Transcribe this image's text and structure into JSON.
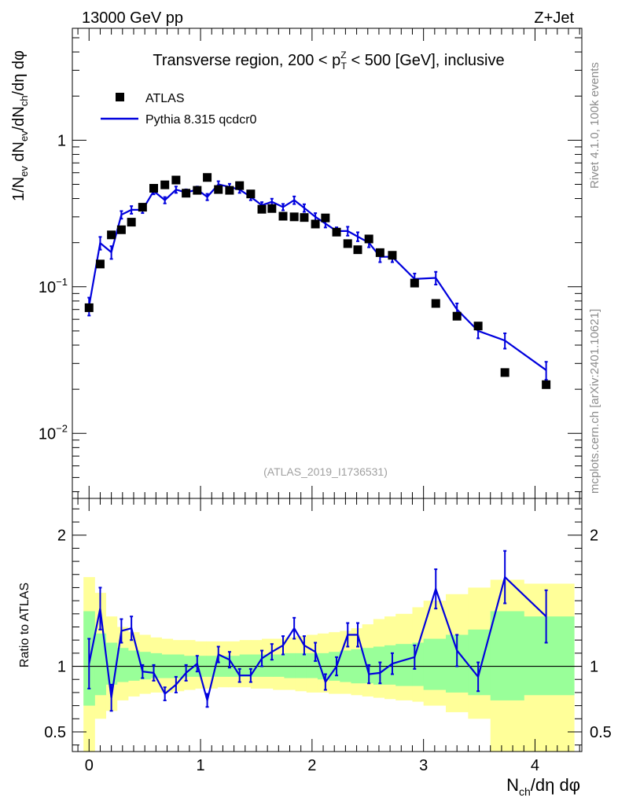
{
  "header": {
    "left": "13000 GeV pp",
    "right": "Z+Jet"
  },
  "side_labels": {
    "rivet": "Rivet 4.1.0,  100k events",
    "source": "mcplots.cern.ch [arXiv:2401.10621]"
  },
  "chart_data": [
    {
      "type": "scatter",
      "role": "main",
      "title": "Transverse region, 200 < p_T^Z < 500 [GeV], inclusive",
      "title_parts": {
        "a": "Transverse region, 200 < p",
        "sup": "Z",
        "sub": "T",
        "b": " < 500 [GeV], inclusive"
      },
      "ylabel": "1/N_ev dN_ev/dN_ch/dη dφ",
      "ylabel_parts": [
        "1/N",
        "ev",
        " dN",
        "ev",
        "/dN",
        "ch",
        "/dη dφ"
      ],
      "yscale": "log",
      "xlim": [
        -0.15,
        4.42
      ],
      "ylim": [
        0.0036,
        5.8
      ],
      "y_ticks": [
        {
          "value": 1,
          "label": "1"
        },
        {
          "value": 0.1,
          "label": "10",
          "exp": "−1"
        },
        {
          "value": 0.01,
          "label": "10",
          "exp": "−2"
        }
      ],
      "watermark": "(ATLAS_2019_I1736531)",
      "legend": [
        "ATLAS",
        "Pythia 8.315 qcdcr0"
      ],
      "series": [
        {
          "name": "ATLAS",
          "style": "black-squares",
          "x": [
            0.0,
            0.1,
            0.2,
            0.29,
            0.38,
            0.48,
            0.58,
            0.68,
            0.78,
            0.87,
            0.97,
            1.06,
            1.16,
            1.26,
            1.35,
            1.45,
            1.55,
            1.64,
            1.74,
            1.84,
            1.93,
            2.03,
            2.12,
            2.22,
            2.32,
            2.41,
            2.51,
            2.61,
            2.72,
            2.92,
            3.11,
            3.3,
            3.49,
            3.73,
            4.1
          ],
          "values": [
            0.072,
            0.143,
            0.226,
            0.245,
            0.276,
            0.349,
            0.47,
            0.496,
            0.535,
            0.435,
            0.455,
            0.557,
            0.461,
            0.455,
            0.49,
            0.43,
            0.338,
            0.342,
            0.303,
            0.3,
            0.297,
            0.268,
            0.295,
            0.236,
            0.197,
            0.179,
            0.212,
            0.171,
            0.164,
            0.106,
            0.077,
            0.063,
            0.054,
            0.026,
            0.0215
          ]
        },
        {
          "name": "Pythia 8.315 qcdcr0",
          "style": "blue-line",
          "x": [
            0.0,
            0.1,
            0.2,
            0.29,
            0.38,
            0.48,
            0.58,
            0.68,
            0.78,
            0.87,
            0.97,
            1.06,
            1.16,
            1.26,
            1.35,
            1.45,
            1.55,
            1.64,
            1.74,
            1.84,
            1.93,
            2.03,
            2.12,
            2.22,
            2.32,
            2.41,
            2.51,
            2.61,
            2.72,
            2.92,
            3.11,
            3.3,
            3.49,
            3.73,
            4.1
          ],
          "values": [
            0.074,
            0.199,
            0.172,
            0.31,
            0.335,
            0.335,
            0.45,
            0.39,
            0.46,
            0.44,
            0.46,
            0.41,
            0.5,
            0.48,
            0.46,
            0.41,
            0.36,
            0.38,
            0.35,
            0.39,
            0.345,
            0.3,
            0.27,
            0.24,
            0.24,
            0.22,
            0.2,
            0.16,
            0.16,
            0.113,
            0.115,
            0.07,
            0.05,
            0.043,
            0.027
          ],
          "rel_errors": [
            0.14,
            0.1,
            0.1,
            0.06,
            0.06,
            0.05,
            0.05,
            0.05,
            0.05,
            0.05,
            0.05,
            0.05,
            0.05,
            0.05,
            0.05,
            0.05,
            0.05,
            0.05,
            0.05,
            0.06,
            0.06,
            0.06,
            0.06,
            0.06,
            0.07,
            0.07,
            0.07,
            0.08,
            0.08,
            0.09,
            0.1,
            0.1,
            0.11,
            0.12,
            0.14
          ]
        }
      ]
    },
    {
      "type": "line",
      "role": "ratio",
      "ylabel": "Ratio to ATLAS",
      "xlabel": "N_ch/dη dφ",
      "xlabel_parts": [
        "N",
        "ch",
        "/dη dφ"
      ],
      "xlim": [
        -0.15,
        4.42
      ],
      "ylim": [
        0.35,
        2.28
      ],
      "reference_line": 1.0,
      "x_ticks": [
        0,
        1,
        2,
        3,
        4
      ],
      "y_ticks": [
        {
          "value": 0.5,
          "label": "0.5"
        },
        {
          "value": 1,
          "label": "1"
        },
        {
          "value": 2,
          "label": "2"
        }
      ],
      "bands": {
        "bin_edges": [
          -0.05,
          0.05,
          0.15,
          0.25,
          0.35,
          0.45,
          0.55,
          0.65,
          0.75,
          0.85,
          0.95,
          1.05,
          1.15,
          1.25,
          1.35,
          1.45,
          1.55,
          1.65,
          1.75,
          1.85,
          1.95,
          2.05,
          2.15,
          2.25,
          2.35,
          2.45,
          2.55,
          2.65,
          2.75,
          2.9,
          3.0,
          3.2,
          3.4,
          3.6,
          3.9,
          4.35
        ],
        "stat_lower": [
          0.7,
          0.78,
          0.86,
          0.88,
          0.89,
          0.9,
          0.91,
          0.91,
          0.91,
          0.92,
          0.92,
          0.92,
          0.92,
          0.92,
          0.92,
          0.92,
          0.92,
          0.92,
          0.91,
          0.91,
          0.91,
          0.9,
          0.89,
          0.88,
          0.87,
          0.87,
          0.86,
          0.86,
          0.85,
          0.85,
          0.82,
          0.8,
          0.78,
          0.74,
          0.78
        ],
        "stat_upper": [
          1.42,
          1.25,
          1.18,
          1.14,
          1.12,
          1.11,
          1.1,
          1.09,
          1.09,
          1.08,
          1.08,
          1.08,
          1.08,
          1.08,
          1.09,
          1.09,
          1.09,
          1.09,
          1.1,
          1.1,
          1.1,
          1.1,
          1.11,
          1.12,
          1.13,
          1.14,
          1.15,
          1.16,
          1.17,
          1.18,
          1.21,
          1.24,
          1.28,
          1.42,
          1.38
        ],
        "tot_lower": [
          0.35,
          0.6,
          0.66,
          0.74,
          0.77,
          0.79,
          0.8,
          0.8,
          0.81,
          0.82,
          0.83,
          0.83,
          0.84,
          0.84,
          0.84,
          0.83,
          0.83,
          0.82,
          0.82,
          0.81,
          0.8,
          0.8,
          0.79,
          0.79,
          0.78,
          0.77,
          0.76,
          0.75,
          0.74,
          0.73,
          0.7,
          0.65,
          0.6,
          0.35,
          0.35
        ],
        "tot_upper": [
          1.68,
          1.56,
          1.38,
          1.3,
          1.26,
          1.24,
          1.22,
          1.21,
          1.2,
          1.2,
          1.19,
          1.19,
          1.19,
          1.19,
          1.2,
          1.2,
          1.21,
          1.21,
          1.22,
          1.23,
          1.24,
          1.25,
          1.26,
          1.27,
          1.29,
          1.32,
          1.36,
          1.38,
          1.4,
          1.45,
          1.5,
          1.55,
          1.6,
          1.66,
          1.63
        ]
      },
      "series": [
        {
          "name": "Pythia 8.315 qcdcr0 / ATLAS",
          "x": [
            0.0,
            0.1,
            0.2,
            0.29,
            0.38,
            0.48,
            0.58,
            0.68,
            0.78,
            0.87,
            0.97,
            1.06,
            1.16,
            1.26,
            1.35,
            1.45,
            1.55,
            1.64,
            1.74,
            1.84,
            1.93,
            2.03,
            2.12,
            2.22,
            2.32,
            2.41,
            2.51,
            2.61,
            2.72,
            2.92,
            3.11,
            3.3,
            3.49,
            3.73,
            4.1
          ],
          "values": [
            1.02,
            1.44,
            0.76,
            1.27,
            1.29,
            0.96,
            0.95,
            0.79,
            0.86,
            0.95,
            1.02,
            0.74,
            1.09,
            1.05,
            0.93,
            0.93,
            1.06,
            1.11,
            1.16,
            1.29,
            1.16,
            1.11,
            0.88,
            1.0,
            1.24,
            1.24,
            0.94,
            0.95,
            1.02,
            1.07,
            1.59,
            1.12,
            0.92,
            1.68,
            1.38
          ],
          "errors": [
            0.19,
            0.16,
            0.1,
            0.09,
            0.09,
            0.05,
            0.06,
            0.05,
            0.06,
            0.06,
            0.06,
            0.05,
            0.06,
            0.06,
            0.05,
            0.05,
            0.06,
            0.06,
            0.07,
            0.08,
            0.07,
            0.07,
            0.06,
            0.07,
            0.09,
            0.09,
            0.07,
            0.08,
            0.08,
            0.09,
            0.15,
            0.12,
            0.11,
            0.2,
            0.2
          ]
        }
      ]
    }
  ]
}
